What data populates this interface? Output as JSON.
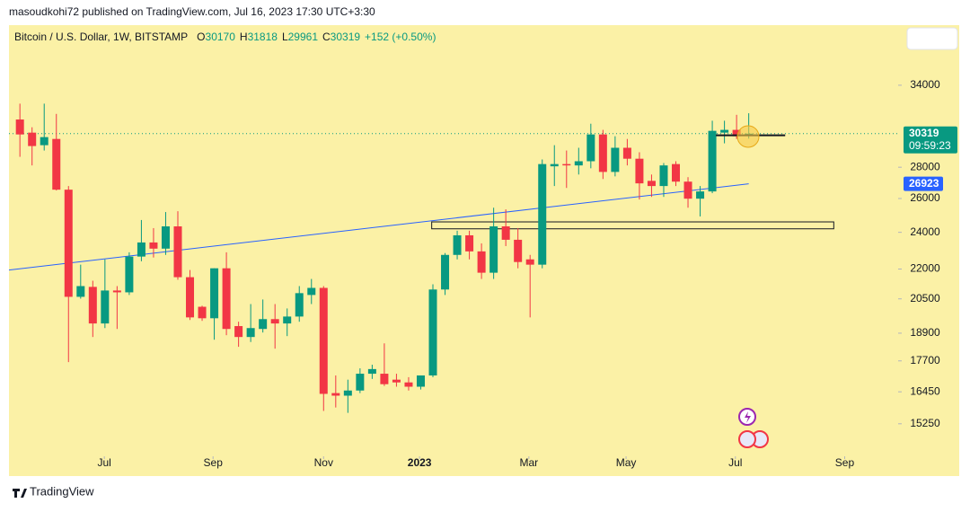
{
  "header": {
    "publisher": "masoudkohi72 published on TradingView.com, Jul 16, 2023 17:30 UTC+3:30"
  },
  "footer": {
    "brand": "TradingView"
  },
  "chart_data": {
    "type": "candlestick",
    "symbol": "Bitcoin / U.S. Dollar, 1W, BITSTAMP",
    "ohlc_labels": [
      "O",
      "H",
      "L",
      "C"
    ],
    "change_label": "+152 (+0.50%)",
    "countdown": "09:59:23",
    "up_color": "#089981",
    "down_color": "#f23645",
    "background": "#fbf1a6",
    "log_scale": true,
    "ylim": [
      14210,
      39200
    ],
    "yticks": [
      15250,
      16450,
      17700,
      18900,
      20500,
      22000,
      24000,
      26000,
      28000,
      34000
    ],
    "xlim": [
      -0.9,
      72.3
    ],
    "xticks": [
      {
        "value": 6.95,
        "label": "Jul"
      },
      {
        "value": 15.9,
        "label": "Sep"
      },
      {
        "value": 25,
        "label": "Nov"
      },
      {
        "value": 32.9,
        "label": "2023"
      },
      {
        "value": 41.9,
        "label": "Mar"
      },
      {
        "value": 49.9,
        "label": "May"
      },
      {
        "value": 58.9,
        "label": "Jul"
      },
      {
        "value": 67.9,
        "label": "Sep"
      }
    ],
    "open": [
      31350,
      30390,
      29500,
      29940,
      26550,
      20600,
      21090,
      19340,
      20910,
      20820,
      22660,
      23430,
      23090,
      24340,
      21580,
      20120,
      19580,
      22040,
      19220,
      18730,
      19090,
      19540,
      19340,
      19660,
      20690,
      21040,
      16400,
      16300,
      16500,
      17170,
      17170,
      16930,
      16820,
      16650,
      17100,
      20960,
      22750,
      23830,
      22940,
      21810,
      24340,
      23580,
      22510,
      22230,
      28060,
      28210,
      28120,
      28400,
      30260,
      27690,
      29320,
      28570,
      27110,
      26780,
      28210,
      27060,
      25990,
      26440,
      30390,
      30590,
      30170
    ],
    "high": [
      32550,
      30780,
      32550,
      31770,
      26780,
      22230,
      21400,
      22510,
      21130,
      22890,
      24710,
      24240,
      25180,
      25230,
      21950,
      20170,
      22040,
      22890,
      19420,
      20250,
      20470,
      20250,
      20040,
      21130,
      21490,
      21130,
      17100,
      16930,
      17390,
      17540,
      18450,
      17170,
      17030,
      17100,
      21220,
      22850,
      24090,
      24090,
      23380,
      25440,
      25340,
      24240,
      22750,
      28520,
      29500,
      29130,
      29320,
      31040,
      30590,
      30130,
      29940,
      29010,
      27520,
      28280,
      28400,
      27350,
      26780,
      31260,
      31260,
      31700,
      31818
    ],
    "low": [
      28700,
      28120,
      29130,
      26500,
      17650,
      20510,
      18730,
      19130,
      19090,
      20690,
      22410,
      22610,
      22750,
      21450,
      19500,
      19460,
      18610,
      18810,
      18300,
      18510,
      18930,
      18220,
      18770,
      19420,
      20250,
      15720,
      15850,
      15650,
      16400,
      16960,
      16680,
      16650,
      16500,
      16540,
      17030,
      20690,
      22510,
      22510,
      21490,
      21490,
      23230,
      22040,
      19620,
      22040,
      26780,
      26660,
      27520,
      27930,
      27230,
      27400,
      28120,
      25940,
      26100,
      26100,
      26780,
      25440,
      24920,
      26330,
      29630,
      29940,
      29961
    ],
    "close": [
      30260,
      29440,
      30070,
      26550,
      20600,
      21130,
      19340,
      20910,
      20820,
      22660,
      23430,
      23090,
      24340,
      21580,
      19620,
      19580,
      22040,
      19090,
      18730,
      19130,
      19540,
      19340,
      19660,
      20780,
      21040,
      16370,
      16300,
      16500,
      17170,
      17360,
      16750,
      16820,
      16650,
      17100,
      20960,
      22750,
      23830,
      22940,
      21810,
      24340,
      23580,
      22370,
      22230,
      28210,
      28210,
      28120,
      28400,
      30260,
      27690,
      29320,
      28570,
      26950,
      26780,
      28120,
      27060,
      25990,
      26440,
      30520,
      30590,
      30130,
      30319
    ],
    "trend_line": {
      "color": "#2962ff",
      "start": {
        "x": -0.9,
        "y": 21950
      },
      "end": {
        "x": 60,
        "y": 26923
      }
    },
    "zone": {
      "x": [
        33.9,
        67
      ],
      "y": [
        24200,
        24600
      ]
    },
    "level_line": {
      "x": [
        57.3,
        63
      ],
      "y": 30200
    }
  }
}
